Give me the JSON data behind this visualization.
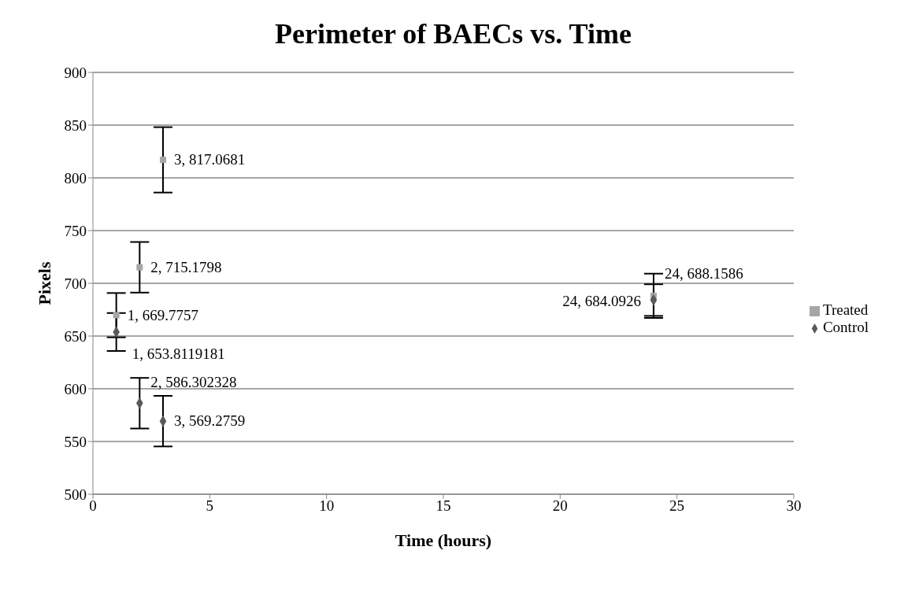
{
  "chart_data": {
    "type": "scatter",
    "title": "Perimeter of BAECs vs. Time",
    "xlabel": "Time (hours)",
    "ylabel": "Pixels",
    "xlim": [
      0,
      30
    ],
    "xticks": [
      0,
      5,
      10,
      15,
      20,
      25,
      30
    ],
    "ylim": [
      500,
      900
    ],
    "yticks": [
      500,
      550,
      600,
      650,
      700,
      750,
      800,
      850,
      900
    ],
    "grid": "y",
    "legend": "right",
    "series": [
      {
        "name": "Treated",
        "color": "#a6a6a6",
        "marker": "square",
        "x": [
          1,
          2,
          3,
          24
        ],
        "values": [
          669.7757,
          715.1798,
          817.0681,
          688.1586
        ],
        "errors": [
          21,
          24,
          31,
          21
        ],
        "value_labels": [
          "1, 669.7757",
          "2, 715.1798",
          "3, 817.0681",
          "24, 688.1586"
        ]
      },
      {
        "name": "Control",
        "color": "#595959",
        "marker": "diamond",
        "x": [
          1,
          2,
          3,
          24
        ],
        "values": [
          653.8119181,
          586.302328,
          569.2759,
          684.0926
        ],
        "errors": [
          18,
          24,
          24,
          15
        ],
        "value_labels": [
          "1, 653.8119181",
          "2, 586.302328",
          "3, 569.2759",
          "24, 684.0926"
        ]
      }
    ]
  }
}
